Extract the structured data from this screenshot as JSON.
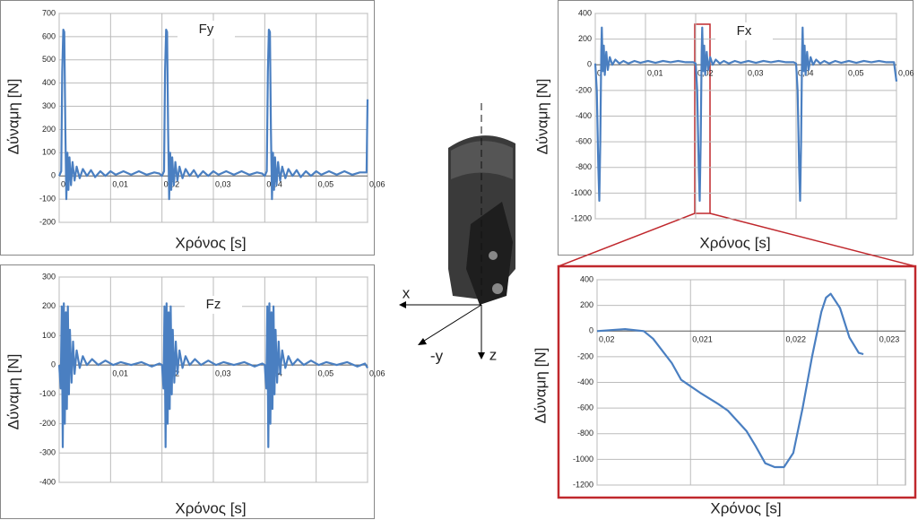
{
  "chart_data": [
    {
      "type": "line",
      "title": "Fy",
      "xlabel": "Χρόνος [s]",
      "ylabel": "Δύναμη [N]",
      "color": "#4a7fc1",
      "grid": true,
      "xlim": [
        0,
        0.06
      ],
      "ylim": [
        -200,
        700
      ],
      "xticks": [
        0,
        {
          "value": 0.01,
          "label": "0,01"
        },
        {
          "value": 0.02,
          "label": "0,02"
        },
        {
          "value": 0.03,
          "label": "0,03"
        },
        {
          "value": 0.04,
          "label": "0,04"
        },
        {
          "value": 0.05,
          "label": "0,05"
        },
        {
          "value": 0.06,
          "label": "0,06"
        }
      ],
      "yticks": [
        -200,
        -100,
        0,
        100,
        200,
        300,
        400,
        500,
        600,
        700
      ],
      "x": [
        0,
        0.0004,
        0.0006,
        0.0008,
        0.001,
        0.0012,
        0.0014,
        0.0016,
        0.0018,
        0.002,
        0.0023,
        0.0026,
        0.003,
        0.0034,
        0.004,
        0.0046,
        0.0054,
        0.0062,
        0.007,
        0.008,
        0.009,
        0.01,
        0.011,
        0.0125,
        0.014,
        0.0155,
        0.017,
        0.0185,
        0.0195,
        0.02,
        0.0204,
        0.0206,
        0.0208,
        0.021,
        0.0212,
        0.0214,
        0.0216,
        0.0218,
        0.022,
        0.0223,
        0.0226,
        0.023,
        0.0234,
        0.024,
        0.0246,
        0.0254,
        0.0262,
        0.027,
        0.028,
        0.029,
        0.03,
        0.031,
        0.0325,
        0.034,
        0.0355,
        0.037,
        0.0385,
        0.0395,
        0.04,
        0.0404,
        0.0406,
        0.0408,
        0.041,
        0.0412,
        0.0414,
        0.0416,
        0.0418,
        0.042,
        0.0423,
        0.0426,
        0.043,
        0.0434,
        0.044,
        0.0446,
        0.0454,
        0.0462,
        0.047,
        0.048,
        0.049,
        0.05,
        0.051,
        0.0525,
        0.054,
        0.0555,
        0.057,
        0.0585,
        0.0598,
        0.06
      ],
      "values": [
        0,
        20,
        450,
        630,
        620,
        200,
        -100,
        100,
        -60,
        80,
        -40,
        60,
        -20,
        40,
        -10,
        30,
        0,
        25,
        -5,
        20,
        0,
        20,
        5,
        20,
        5,
        20,
        5,
        15,
        10,
        0,
        20,
        450,
        630,
        620,
        200,
        -100,
        100,
        -60,
        80,
        -40,
        60,
        -20,
        40,
        -10,
        30,
        0,
        25,
        -5,
        20,
        0,
        20,
        5,
        20,
        5,
        20,
        5,
        15,
        10,
        0,
        20,
        450,
        630,
        620,
        200,
        -100,
        100,
        -60,
        80,
        -40,
        60,
        -20,
        40,
        -10,
        30,
        0,
        25,
        -5,
        20,
        0,
        20,
        5,
        20,
        5,
        20,
        5,
        15,
        15,
        330
      ]
    },
    {
      "type": "line",
      "title": "Fx",
      "xlabel": "Χρόνος [s]",
      "ylabel": "Δύναμη [N]",
      "color": "#4a7fc1",
      "grid": true,
      "xlim": [
        0,
        0.06
      ],
      "ylim": [
        -1200,
        400
      ],
      "xticks": [
        0,
        {
          "value": 0.01,
          "label": "0,01"
        },
        {
          "value": 0.02,
          "label": "0,02"
        },
        {
          "value": 0.03,
          "label": "0,03"
        },
        {
          "value": 0.04,
          "label": "0,04"
        },
        {
          "value": 0.05,
          "label": "0,05"
        },
        {
          "value": 0.06,
          "label": "0,06"
        }
      ],
      "yticks": [
        -1200,
        -1000,
        -800,
        -600,
        -400,
        -200,
        0,
        200,
        400
      ],
      "x": [
        0,
        0.0003,
        0.0006,
        0.0008,
        0.001,
        0.0012,
        0.0013,
        0.0015,
        0.0017,
        0.0019,
        0.0022,
        0.0025,
        0.0029,
        0.0034,
        0.004,
        0.0048,
        0.0056,
        0.0066,
        0.0078,
        0.009,
        0.0105,
        0.012,
        0.0135,
        0.015,
        0.0165,
        0.018,
        0.0195,
        0.02,
        0.0203,
        0.0206,
        0.0208,
        0.021,
        0.0212,
        0.0213,
        0.0215,
        0.0217,
        0.0219,
        0.0222,
        0.0225,
        0.0229,
        0.0234,
        0.024,
        0.0248,
        0.0256,
        0.0266,
        0.0278,
        0.029,
        0.0305,
        0.032,
        0.0335,
        0.035,
        0.0365,
        0.038,
        0.0395,
        0.04,
        0.0403,
        0.0406,
        0.0408,
        0.041,
        0.0412,
        0.0413,
        0.0415,
        0.0417,
        0.0419,
        0.0422,
        0.0425,
        0.0429,
        0.0434,
        0.044,
        0.0448,
        0.0456,
        0.0466,
        0.0478,
        0.049,
        0.0505,
        0.052,
        0.0535,
        0.055,
        0.0565,
        0.058,
        0.0595,
        0.06
      ],
      "values": [
        10,
        -200,
        -800,
        -1060,
        -600,
        100,
        290,
        -50,
        150,
        -80,
        100,
        -40,
        60,
        0,
        40,
        10,
        30,
        10,
        30,
        15,
        30,
        15,
        30,
        20,
        30,
        20,
        20,
        10,
        -200,
        -800,
        -1060,
        -600,
        100,
        290,
        -50,
        150,
        -80,
        100,
        -40,
        60,
        0,
        40,
        10,
        30,
        10,
        30,
        15,
        30,
        15,
        30,
        20,
        30,
        20,
        20,
        10,
        -200,
        -800,
        -1060,
        -600,
        100,
        290,
        -50,
        150,
        -80,
        100,
        -40,
        60,
        0,
        40,
        10,
        30,
        10,
        30,
        15,
        30,
        15,
        30,
        20,
        30,
        20,
        20,
        -130
      ]
    },
    {
      "type": "line",
      "title": "Fz",
      "xlabel": "Χρόνος [s]",
      "ylabel": "Δύναμη [N]",
      "color": "#4a7fc1",
      "grid": true,
      "xlim": [
        0,
        0.06
      ],
      "ylim": [
        -400,
        300
      ],
      "xticks": [
        0,
        {
          "value": 0.01,
          "label": "0,01"
        },
        {
          "value": 0.02,
          "label": "0,02"
        },
        {
          "value": 0.03,
          "label": "0,03"
        },
        {
          "value": 0.04,
          "label": "0,04"
        },
        {
          "value": 0.05,
          "label": "0,05"
        },
        {
          "value": 0.06,
          "label": "0,06"
        }
      ],
      "yticks": [
        -400,
        -300,
        -200,
        -100,
        0,
        100,
        200,
        300
      ],
      "x": [
        0,
        0.0003,
        0.0005,
        0.0007,
        0.0009,
        0.0011,
        0.0013,
        0.0015,
        0.0017,
        0.0019,
        0.0021,
        0.0024,
        0.0027,
        0.003,
        0.0034,
        0.004,
        0.0046,
        0.0054,
        0.0064,
        0.0076,
        0.009,
        0.0105,
        0.012,
        0.014,
        0.016,
        0.018,
        0.0195,
        0.02,
        0.0203,
        0.0205,
        0.0207,
        0.0209,
        0.0211,
        0.0213,
        0.0215,
        0.0217,
        0.0219,
        0.0221,
        0.0224,
        0.0227,
        0.023,
        0.0234,
        0.024,
        0.0246,
        0.0254,
        0.0264,
        0.0276,
        0.029,
        0.0305,
        0.032,
        0.034,
        0.036,
        0.038,
        0.0395,
        0.04,
        0.0403,
        0.0405,
        0.0407,
        0.0409,
        0.0411,
        0.0413,
        0.0415,
        0.0417,
        0.0419,
        0.0421,
        0.0424,
        0.0427,
        0.043,
        0.0434,
        0.044,
        0.0446,
        0.0454,
        0.0464,
        0.0476,
        0.049,
        0.0505,
        0.052,
        0.054,
        0.056,
        0.058,
        0.0595,
        0.06
      ],
      "values": [
        0,
        -80,
        200,
        -280,
        210,
        -200,
        180,
        -150,
        200,
        -100,
        120,
        -60,
        80,
        -30,
        50,
        -10,
        30,
        0,
        20,
        0,
        15,
        0,
        10,
        0,
        10,
        -5,
        5,
        0,
        -80,
        200,
        -280,
        210,
        -200,
        180,
        -150,
        200,
        -100,
        120,
        -60,
        80,
        -30,
        50,
        -10,
        30,
        0,
        20,
        0,
        15,
        0,
        10,
        0,
        10,
        -5,
        5,
        0,
        -80,
        200,
        -280,
        210,
        -200,
        180,
        -150,
        200,
        -100,
        120,
        -60,
        80,
        -30,
        50,
        -10,
        30,
        0,
        20,
        0,
        15,
        0,
        10,
        0,
        10,
        -5,
        5,
        -10
      ]
    },
    {
      "type": "line",
      "xlabel": "Χρόνος [s]",
      "ylabel": "Δύναμη [N]",
      "color": "#4a7fc1",
      "grid": true,
      "xlim": [
        0.02,
        0.0233
      ],
      "ylim": [
        -1200,
        400
      ],
      "xticks": [
        {
          "value": 0.02,
          "label": "0,02"
        },
        {
          "value": 0.021,
          "label": "0,021"
        },
        {
          "value": 0.022,
          "label": "0,022"
        },
        {
          "value": 0.023,
          "label": "0,023"
        }
      ],
      "yticks": [
        -1200,
        -1000,
        -800,
        -600,
        -400,
        -200,
        0,
        200,
        400
      ],
      "x": [
        0.02,
        0.0202,
        0.0203,
        0.0205,
        0.0206,
        0.0208,
        0.0209,
        0.0211,
        0.0213,
        0.0214,
        0.0216,
        0.0217,
        0.0218,
        0.0219,
        0.022,
        0.0221,
        0.0222,
        0.0223,
        0.0224,
        0.02245,
        0.0225,
        0.0226,
        0.0227,
        0.0228,
        0.02285
      ],
      "values": [
        0,
        10,
        15,
        0,
        -60,
        -250,
        -380,
        -480,
        -570,
        -620,
        -780,
        -900,
        -1030,
        -1060,
        -1060,
        -950,
        -600,
        -200,
        150,
        260,
        290,
        180,
        -50,
        -170,
        -180
      ]
    }
  ],
  "tool_axes": [
    "x",
    "-y",
    "z"
  ]
}
